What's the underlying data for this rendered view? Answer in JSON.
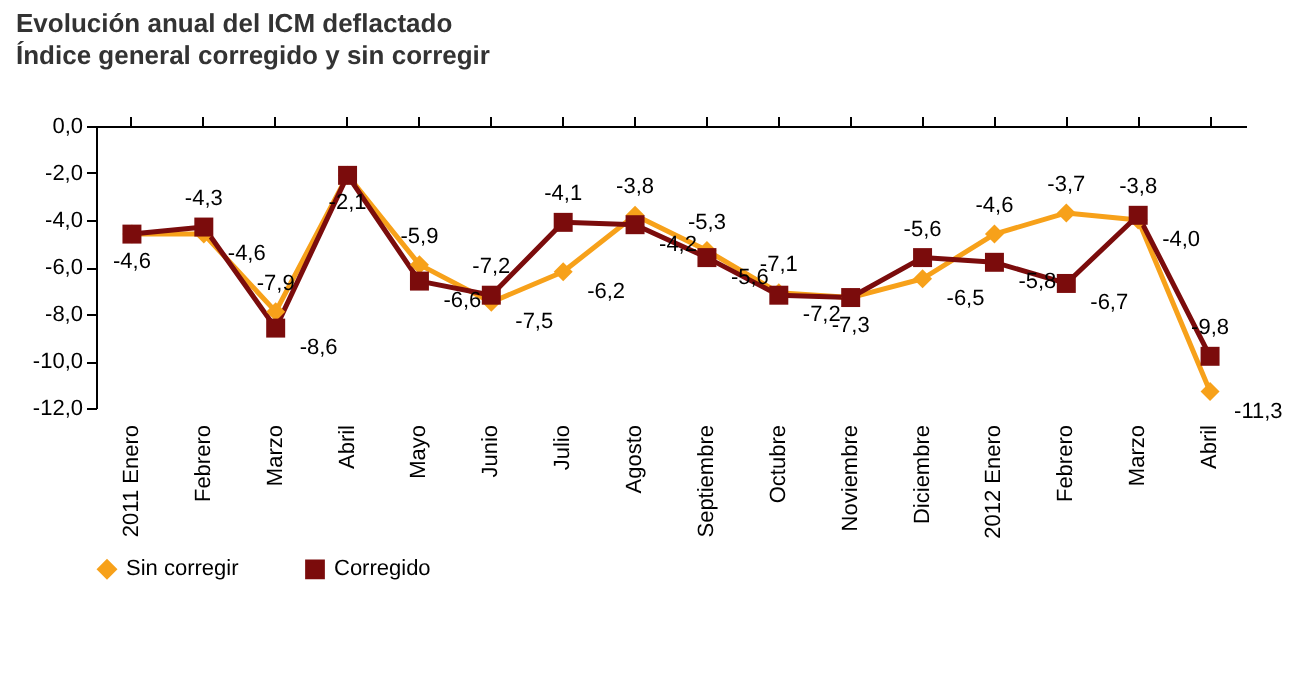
{
  "chart_data": {
    "type": "line",
    "title": "Evolución anual del ICM deflactado",
    "subtitle": "Índice general corregido y sin corregir",
    "categories": [
      "2011 Enero",
      "Febrero",
      "Marzo",
      "Abril",
      "Mayo",
      "Junio",
      "Julio",
      "Agosto",
      "Septiembre",
      "Octubre",
      "Noviembre",
      "Diciembre",
      "2012 Enero",
      "Febrero",
      "Marzo",
      "Abril"
    ],
    "series": [
      {
        "name": "Sin corregir",
        "color": "#f7a11a",
        "marker": "diamond",
        "values": [
          -4.6,
          -4.6,
          -7.9,
          -2.1,
          -5.9,
          -7.5,
          -6.2,
          -3.8,
          -5.3,
          -7.1,
          -7.3,
          -6.5,
          -4.6,
          -3.7,
          -4.0,
          -11.3
        ],
        "value_labels": [
          null,
          "-4,6",
          "-7,9",
          null,
          "-5,9",
          "-7,5",
          "-6,2",
          "-3,8",
          "-5,3",
          "-7,1",
          null,
          "-6,5",
          "-4,6",
          "-3,7",
          "-4,0",
          "-11,3"
        ]
      },
      {
        "name": "Corregido",
        "color": "#7b0c0c",
        "marker": "square",
        "values": [
          -4.6,
          -4.3,
          -8.6,
          -2.1,
          -6.6,
          -7.2,
          -4.1,
          -4.2,
          -5.6,
          -7.2,
          -7.3,
          -5.6,
          -5.8,
          -6.7,
          -3.8,
          -9.8
        ],
        "value_labels": [
          "-4,6",
          "-4,3",
          "-8,6",
          "-2,1",
          "-6,6",
          "-7,2",
          "-4,1",
          "-4,2",
          "-5,6",
          "-7,2",
          "-7,3",
          "-5,6",
          "-5,8",
          "-6,7",
          "-3,8",
          "-9,8"
        ]
      }
    ],
    "ylim": [
      -12,
      0
    ],
    "yticks": [
      {
        "value": -12,
        "label": "-12,0"
      },
      {
        "value": -10,
        "label": "-10,0"
      },
      {
        "value": -8,
        "label": "-8,0"
      },
      {
        "value": -6,
        "label": "-6,0"
      },
      {
        "value": -4,
        "label": "-4,0"
      },
      {
        "value": -2,
        "label": "-2,0"
      },
      {
        "value": 0,
        "label": "0,0"
      }
    ],
    "grid": false,
    "legend": "bottom",
    "line_style": "solid"
  }
}
